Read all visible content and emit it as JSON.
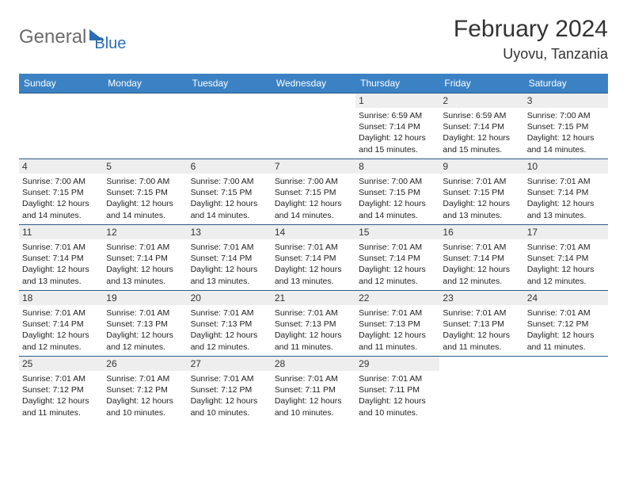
{
  "branding": {
    "word1": "General",
    "word2": "Blue"
  },
  "header": {
    "month_title": "February 2024",
    "location": "Uyovu, Tanzania"
  },
  "colors": {
    "header_bar": "#3b82c4",
    "row_divider": "#2d5a8a",
    "daynum_bg": "#eeeeee",
    "logo_grey": "#6b6b6b",
    "logo_blue": "#2b6db3",
    "text": "#222222"
  },
  "weekdays": [
    "Sunday",
    "Monday",
    "Tuesday",
    "Wednesday",
    "Thursday",
    "Friday",
    "Saturday"
  ],
  "weeks": [
    [
      null,
      null,
      null,
      null,
      {
        "n": "1",
        "sr": "6:59 AM",
        "ss": "7:14 PM",
        "dl": "12 hours and 15 minutes."
      },
      {
        "n": "2",
        "sr": "6:59 AM",
        "ss": "7:14 PM",
        "dl": "12 hours and 15 minutes."
      },
      {
        "n": "3",
        "sr": "7:00 AM",
        "ss": "7:15 PM",
        "dl": "12 hours and 14 minutes."
      }
    ],
    [
      {
        "n": "4",
        "sr": "7:00 AM",
        "ss": "7:15 PM",
        "dl": "12 hours and 14 minutes."
      },
      {
        "n": "5",
        "sr": "7:00 AM",
        "ss": "7:15 PM",
        "dl": "12 hours and 14 minutes."
      },
      {
        "n": "6",
        "sr": "7:00 AM",
        "ss": "7:15 PM",
        "dl": "12 hours and 14 minutes."
      },
      {
        "n": "7",
        "sr": "7:00 AM",
        "ss": "7:15 PM",
        "dl": "12 hours and 14 minutes."
      },
      {
        "n": "8",
        "sr": "7:00 AM",
        "ss": "7:15 PM",
        "dl": "12 hours and 14 minutes."
      },
      {
        "n": "9",
        "sr": "7:01 AM",
        "ss": "7:15 PM",
        "dl": "12 hours and 13 minutes."
      },
      {
        "n": "10",
        "sr": "7:01 AM",
        "ss": "7:14 PM",
        "dl": "12 hours and 13 minutes."
      }
    ],
    [
      {
        "n": "11",
        "sr": "7:01 AM",
        "ss": "7:14 PM",
        "dl": "12 hours and 13 minutes."
      },
      {
        "n": "12",
        "sr": "7:01 AM",
        "ss": "7:14 PM",
        "dl": "12 hours and 13 minutes."
      },
      {
        "n": "13",
        "sr": "7:01 AM",
        "ss": "7:14 PM",
        "dl": "12 hours and 13 minutes."
      },
      {
        "n": "14",
        "sr": "7:01 AM",
        "ss": "7:14 PM",
        "dl": "12 hours and 13 minutes."
      },
      {
        "n": "15",
        "sr": "7:01 AM",
        "ss": "7:14 PM",
        "dl": "12 hours and 12 minutes."
      },
      {
        "n": "16",
        "sr": "7:01 AM",
        "ss": "7:14 PM",
        "dl": "12 hours and 12 minutes."
      },
      {
        "n": "17",
        "sr": "7:01 AM",
        "ss": "7:14 PM",
        "dl": "12 hours and 12 minutes."
      }
    ],
    [
      {
        "n": "18",
        "sr": "7:01 AM",
        "ss": "7:14 PM",
        "dl": "12 hours and 12 minutes."
      },
      {
        "n": "19",
        "sr": "7:01 AM",
        "ss": "7:13 PM",
        "dl": "12 hours and 12 minutes."
      },
      {
        "n": "20",
        "sr": "7:01 AM",
        "ss": "7:13 PM",
        "dl": "12 hours and 12 minutes."
      },
      {
        "n": "21",
        "sr": "7:01 AM",
        "ss": "7:13 PM",
        "dl": "12 hours and 11 minutes."
      },
      {
        "n": "22",
        "sr": "7:01 AM",
        "ss": "7:13 PM",
        "dl": "12 hours and 11 minutes."
      },
      {
        "n": "23",
        "sr": "7:01 AM",
        "ss": "7:13 PM",
        "dl": "12 hours and 11 minutes."
      },
      {
        "n": "24",
        "sr": "7:01 AM",
        "ss": "7:12 PM",
        "dl": "12 hours and 11 minutes."
      }
    ],
    [
      {
        "n": "25",
        "sr": "7:01 AM",
        "ss": "7:12 PM",
        "dl": "12 hours and 11 minutes."
      },
      {
        "n": "26",
        "sr": "7:01 AM",
        "ss": "7:12 PM",
        "dl": "12 hours and 10 minutes."
      },
      {
        "n": "27",
        "sr": "7:01 AM",
        "ss": "7:12 PM",
        "dl": "12 hours and 10 minutes."
      },
      {
        "n": "28",
        "sr": "7:01 AM",
        "ss": "7:11 PM",
        "dl": "12 hours and 10 minutes."
      },
      {
        "n": "29",
        "sr": "7:01 AM",
        "ss": "7:11 PM",
        "dl": "12 hours and 10 minutes."
      },
      null,
      null
    ]
  ],
  "labels": {
    "sunrise": "Sunrise:",
    "sunset": "Sunset:",
    "daylight": "Daylight:"
  }
}
